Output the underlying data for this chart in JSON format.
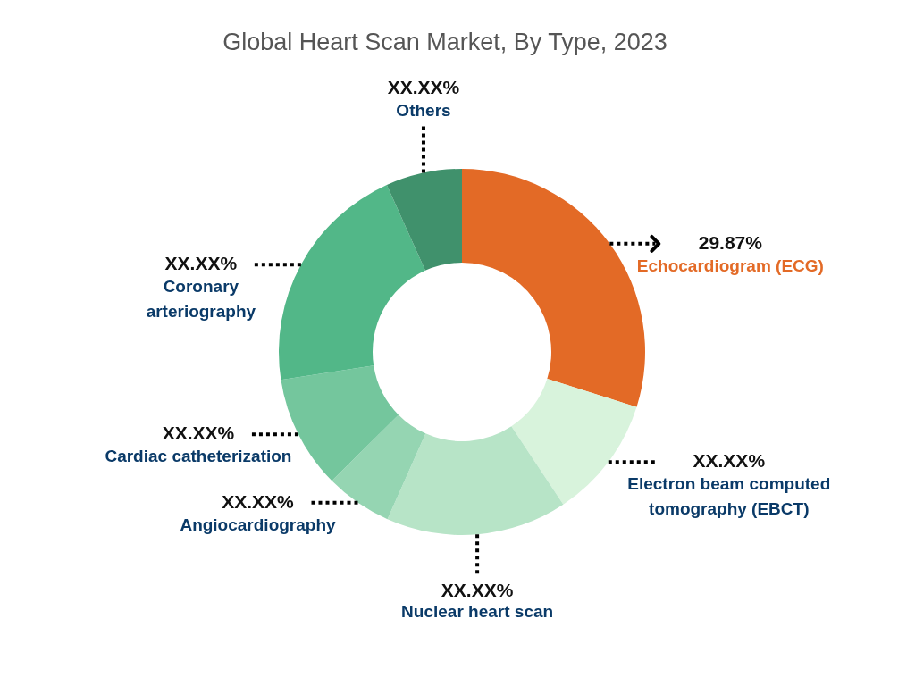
{
  "chart_data": {
    "type": "donut",
    "title": "Global Heart Scan Market, By Type, 2023",
    "categories": [
      "Echocardiogram (ECG)",
      "Electron beam computed tomography (EBCT)",
      "Nuclear heart scan",
      "Angiocardiography",
      "Cardiac catheterization",
      "Coronary arteriography",
      "Others"
    ],
    "values": [
      29.87,
      10.8,
      16.0,
      5.9,
      10.0,
      20.7,
      6.73
    ],
    "colors": [
      "#e36a26",
      "#d8f3dc",
      "#b7e4c7",
      "#95d5b2",
      "#74c69d",
      "#52b788",
      "#40916c"
    ],
    "value_labels": [
      "29.87%",
      "XX.XX%",
      "XX.XX%",
      "XX.XX%",
      "XX.XX%",
      "XX.XX%",
      "XX.XX%"
    ]
  }
}
